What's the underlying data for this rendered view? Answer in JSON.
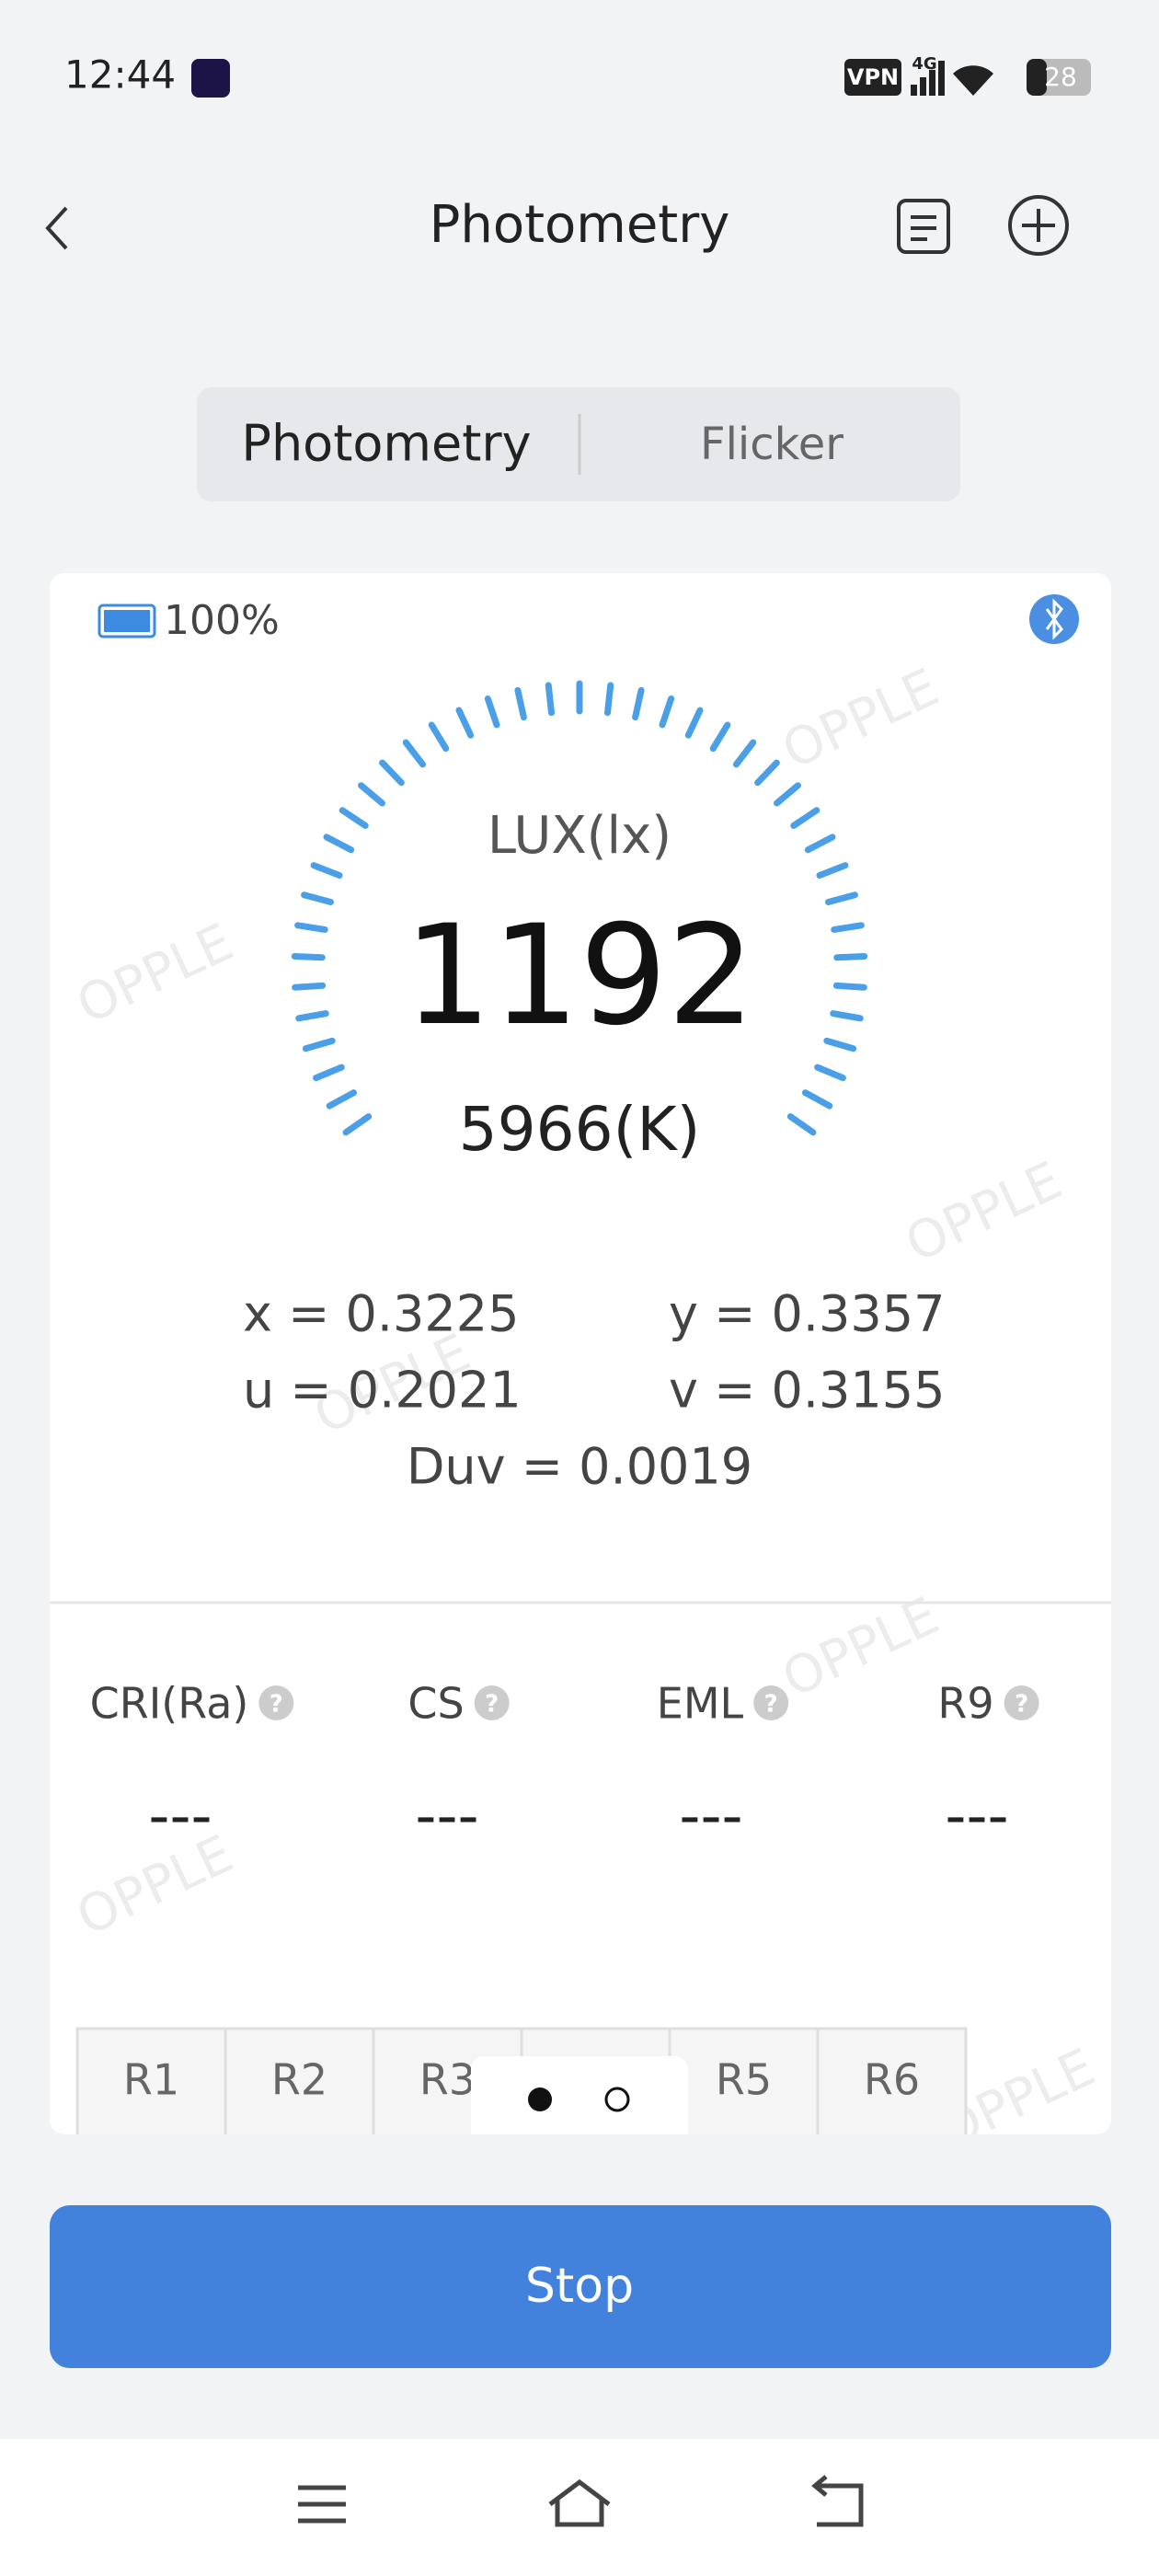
{
  "status_bar": {
    "time": "12:44",
    "vpn": "VPN",
    "network": "4G",
    "battery": "28"
  },
  "header": {
    "title": "Photometry"
  },
  "tabs": [
    "Photometry",
    "Flicker"
  ],
  "device": {
    "battery": "100%"
  },
  "gauge": {
    "unit": "LUX(lx)",
    "value": "1192",
    "cct": "5966(K)"
  },
  "coordinates": {
    "x": "x = 0.3225",
    "y": "y = 0.3357",
    "u": "u = 0.2021",
    "v": "v = 0.3155",
    "duv": "Duv = 0.0019"
  },
  "metrics": [
    {
      "label": "CRI(Ra)",
      "value": "---"
    },
    {
      "label": "CS",
      "value": "---"
    },
    {
      "label": "EML",
      "value": "---"
    },
    {
      "label": "R9",
      "value": "---"
    }
  ],
  "r_tabs": [
    "R1",
    "R2",
    "R3",
    null,
    "R5",
    "R6"
  ],
  "watermark": "OPPLE",
  "button": "Stop"
}
